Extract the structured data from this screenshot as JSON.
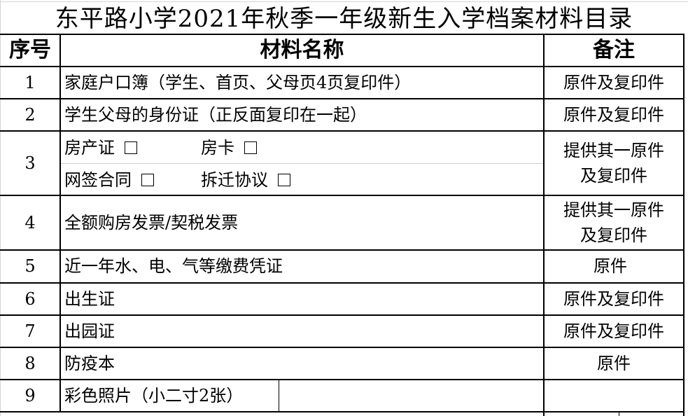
{
  "title": "东平路小学2021年秋季一年级新生入学档案材料目录",
  "headers": {
    "no": "序号",
    "name": "材料名称",
    "note": "备注"
  },
  "rows": [
    {
      "no": "1",
      "name": "家庭户口簿（学生、首页、父母页4页复印件）",
      "note": "原件及复印件"
    },
    {
      "no": "2",
      "name": "学生父母的身份证（正反面复印在一起）",
      "note": "原件及复印件"
    },
    {
      "no": "3",
      "options": [
        "房产证",
        "房卡",
        "网签合同",
        "拆迁协议"
      ],
      "note_lines": [
        "提供其一原件",
        "及复印件"
      ]
    },
    {
      "no": "4",
      "name": "全额购房发票/契税发票",
      "note_lines": [
        "提供其一原件",
        "及复印件"
      ]
    },
    {
      "no": "5",
      "name": "近一年水、电、气等缴费凭证",
      "note": "原件"
    },
    {
      "no": "6",
      "name": "出生证",
      "note": "原件及复印件"
    },
    {
      "no": "7",
      "name": "出园证",
      "note": "原件及复印件"
    },
    {
      "no": "8",
      "name": "防疫本",
      "note": "原件"
    },
    {
      "no": "9",
      "name": "彩色照片（小二寸2张）",
      "note": ""
    }
  ]
}
